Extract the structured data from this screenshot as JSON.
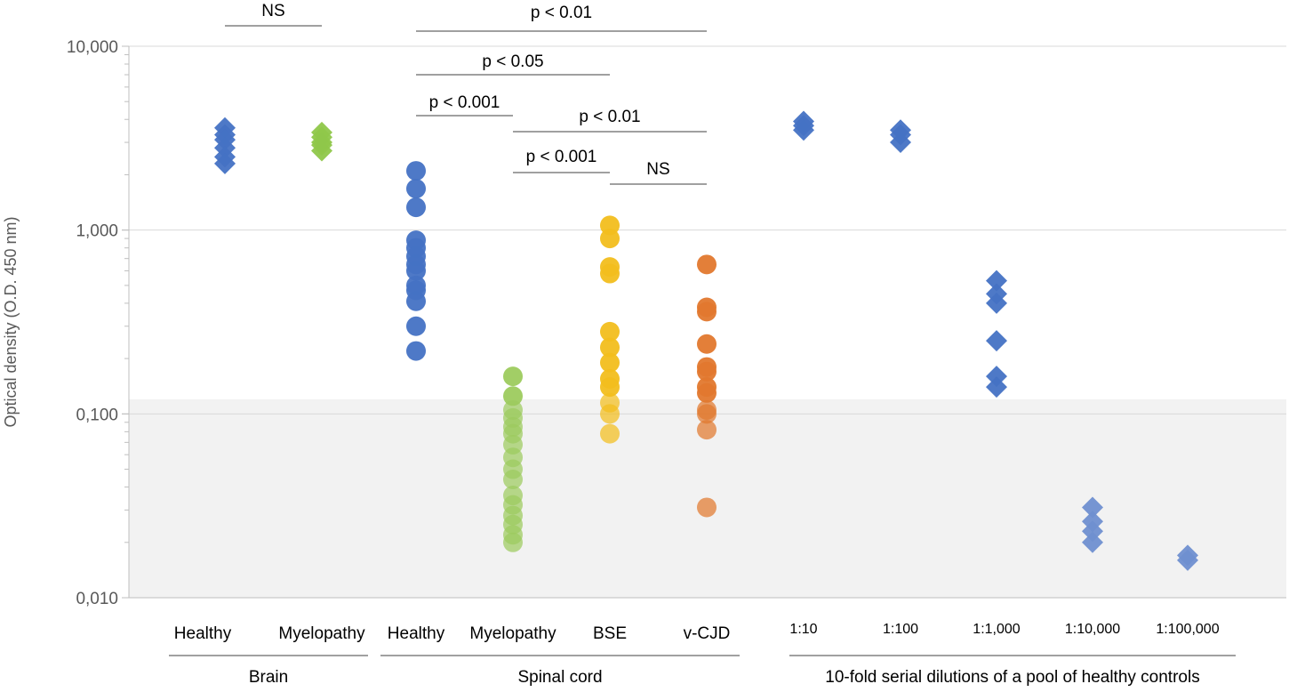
{
  "chart_data": {
    "type": "scatter",
    "scale": "log",
    "ylim": [
      0.01,
      10
    ],
    "ylabel": "Optical density (O.D. 450 nm)",
    "yticks": [
      "0,010",
      "0,100",
      "1,000",
      "10,000"
    ],
    "cutoff_band": [
      0.01,
      0.12
    ],
    "categories": [
      {
        "label": "Healthy",
        "group": "Brain",
        "marker": "diamond",
        "color": "#4472c4",
        "values": [
          3.6,
          3.3,
          3.1,
          2.8,
          2.5,
          2.3
        ]
      },
      {
        "label": "Myelopathy",
        "group": "Brain",
        "marker": "diamond",
        "color": "#8fc74a",
        "values": [
          3.4,
          3.2,
          3.0,
          2.9,
          2.7
        ]
      },
      {
        "label": "Healthy",
        "group": "Spinal cord",
        "marker": "circle",
        "color": "#4472c4",
        "values": [
          2.1,
          1.68,
          1.33,
          0.88,
          0.8,
          0.72,
          0.65,
          0.6,
          0.5,
          0.47,
          0.41,
          0.3,
          0.22
        ]
      },
      {
        "label": "Myelopathy",
        "group": "Spinal cord",
        "marker": "circle",
        "color": "#9dcb5e",
        "values": [
          0.16,
          0.125,
          0.105,
          0.095,
          0.085,
          0.078,
          0.068,
          0.058,
          0.05,
          0.044,
          0.036,
          0.032,
          0.028,
          0.025,
          0.022,
          0.02
        ]
      },
      {
        "label": "BSE",
        "group": "Spinal cord",
        "marker": "circle",
        "color": "#f2be1d",
        "values": [
          1.06,
          0.9,
          0.63,
          0.58,
          0.28,
          0.23,
          0.19,
          0.155,
          0.14,
          0.115,
          0.1,
          0.078
        ]
      },
      {
        "label": "v-CJD",
        "group": "Spinal cord",
        "marker": "circle",
        "color": "#e1782e",
        "values": [
          0.65,
          0.38,
          0.36,
          0.24,
          0.18,
          0.17,
          0.14,
          0.13,
          0.105,
          0.1,
          0.082,
          0.031
        ]
      },
      {
        "label": "1:10",
        "group": "10-fold serial dilutions of a pool of healthy controls",
        "marker": "diamond",
        "color": "#4472c4",
        "values": [
          3.9,
          3.7,
          3.5
        ]
      },
      {
        "label": "1:100",
        "group": "10-fold serial dilutions of a pool of healthy controls",
        "marker": "diamond",
        "color": "#4472c4",
        "values": [
          3.5,
          3.3,
          3.0
        ]
      },
      {
        "label": "1:1,000",
        "group": "10-fold serial dilutions of a pool of healthy controls",
        "marker": "diamond",
        "color": "#4472c4",
        "values": [
          0.53,
          0.45,
          0.4,
          0.25,
          0.16,
          0.14
        ]
      },
      {
        "label": "1:10,000",
        "group": "10-fold serial dilutions of a pool of healthy controls",
        "marker": "diamond",
        "color": "#6f8fd0",
        "values": [
          0.031,
          0.026,
          0.023,
          0.02
        ]
      },
      {
        "label": "1:100,000",
        "group": "10-fold serial dilutions of a pool of healthy controls",
        "marker": "diamond",
        "color": "#6f8fd0",
        "values": [
          0.017,
          0.016
        ]
      }
    ],
    "groups": [
      {
        "label": "Brain",
        "from": 0,
        "to": 1
      },
      {
        "label": "Spinal cord",
        "from": 2,
        "to": 5
      },
      {
        "label": "10-fold serial dilutions of a pool of healthy controls",
        "from": 6,
        "to": 10
      }
    ],
    "annotations": [
      {
        "text": "NS",
        "from": 0,
        "to": 1,
        "level": 0
      },
      {
        "text": "p < 0.01",
        "from": 2,
        "to": 5,
        "level": 0
      },
      {
        "text": "p < 0.05",
        "from": 2,
        "to": 4,
        "level": 1
      },
      {
        "text": "p < 0.001",
        "from": 2,
        "to": 3,
        "level": 2
      },
      {
        "text": "p < 0.01",
        "from": 3,
        "to": 5,
        "level": 3
      },
      {
        "text": "p < 0.001",
        "from": 3,
        "to": 4,
        "level": 4
      },
      {
        "text": "NS",
        "from": 4,
        "to": 5,
        "level": 5
      }
    ]
  }
}
